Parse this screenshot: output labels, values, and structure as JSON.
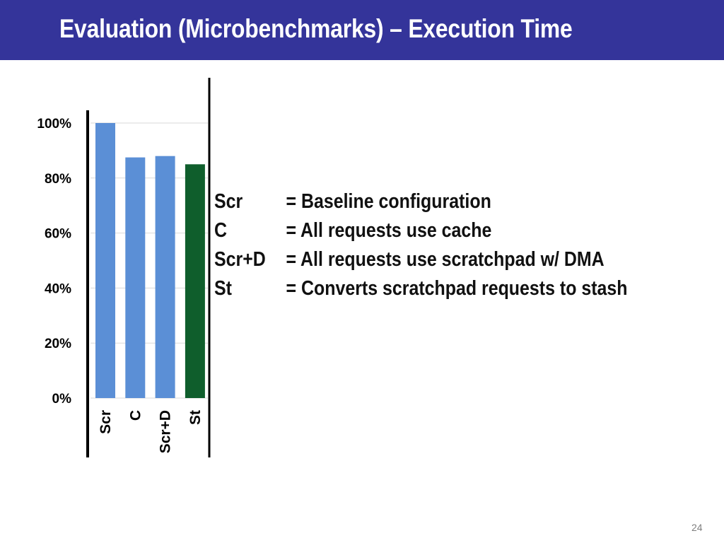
{
  "slide": {
    "title": "Evaluation (Microbenchmarks) – Execution Time",
    "page_number": "24",
    "title_bar_color": "#34349a"
  },
  "legend": [
    {
      "key": "Scr",
      "desc": "= Baseline configuration"
    },
    {
      "key": "C",
      "desc": "= All requests use cache"
    },
    {
      "key": "Scr+D",
      "desc": "= All requests use scratchpad w/ DMA"
    },
    {
      "key": "St",
      "desc": "= Converts scratchpad requests to stash"
    }
  ],
  "chart_data": {
    "type": "bar",
    "title": "",
    "xlabel": "",
    "ylabel": "",
    "categories": [
      "Scr",
      "C",
      "Scr+D",
      "St"
    ],
    "values": [
      100,
      87.5,
      88,
      85
    ],
    "colors": [
      "#5b8fd6",
      "#5b8fd6",
      "#5b8fd6",
      "#0f5e2c"
    ],
    "ylim": [
      0,
      100
    ],
    "yticks": [
      "0%",
      "20%",
      "40%",
      "60%",
      "80%",
      "100%"
    ],
    "grid": true,
    "legend": "none"
  }
}
